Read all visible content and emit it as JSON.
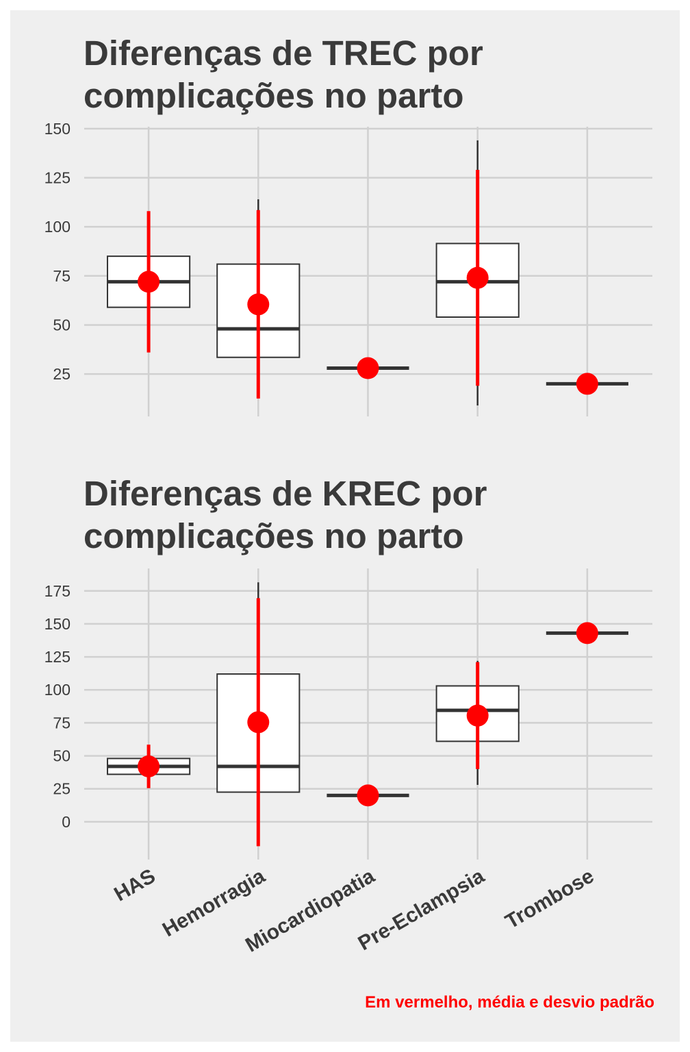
{
  "chart_data": [
    {
      "type": "boxplot",
      "title": "Diferenças de TREC por complicações no parto",
      "ylim": [
        3.4,
        151
      ],
      "yticks": [
        25,
        50,
        75,
        100,
        125,
        150
      ],
      "grid": true,
      "box_color": "#333333",
      "mean_color": "#ff0000",
      "boxes": [
        {
          "low": 59,
          "q1": 59,
          "median": 72,
          "q3": 85,
          "high": 85,
          "mean": 72,
          "sd": 36
        },
        {
          "low": 33.5,
          "q1": 33.5,
          "median": 48,
          "q3": 81,
          "high": 114,
          "mean": 60.5,
          "sd": 48
        },
        {
          "low": 28,
          "q1": 28,
          "median": 28,
          "q3": 28,
          "high": 28,
          "mean": 28,
          "sd": 0
        },
        {
          "low": 9,
          "q1": 54,
          "median": 72,
          "q3": 91.5,
          "high": 144,
          "mean": 74,
          "sd": 55
        },
        {
          "low": 20,
          "q1": 20,
          "median": 20,
          "q3": 20,
          "high": 20,
          "mean": 20,
          "sd": 0
        }
      ]
    },
    {
      "type": "boxplot",
      "title": "Diferenças de KREC por complicações no parto",
      "categories": [
        "HAS",
        "Hemorragia",
        "Miocardiopatia",
        "Pre-Eclampsia",
        "Trombose"
      ],
      "ylim": [
        -28.6,
        192
      ],
      "yticks": [
        0,
        25,
        50,
        75,
        100,
        125,
        150,
        175
      ],
      "grid": true,
      "box_color": "#333333",
      "mean_color": "#ff0000",
      "annotation": "Em vermelho, média e desvio padrão",
      "boxes": [
        {
          "low": 36,
          "q1": 36,
          "median": 42,
          "q3": 48,
          "high": 48,
          "mean": 42,
          "sd": 16.5
        },
        {
          "low": 22.5,
          "q1": 22.5,
          "median": 42,
          "q3": 112,
          "high": 181.5,
          "mean": 75.5,
          "sd": 94
        },
        {
          "low": 20,
          "q1": 20,
          "median": 20,
          "q3": 20,
          "high": 20,
          "mean": 20,
          "sd": 0
        },
        {
          "low": 28,
          "q1": 61,
          "median": 84.5,
          "q3": 103,
          "high": 122,
          "mean": 80.5,
          "sd": 40.5
        },
        {
          "low": 143,
          "q1": 143,
          "median": 143,
          "q3": 143,
          "high": 143,
          "mean": 143,
          "sd": 0
        }
      ]
    }
  ]
}
